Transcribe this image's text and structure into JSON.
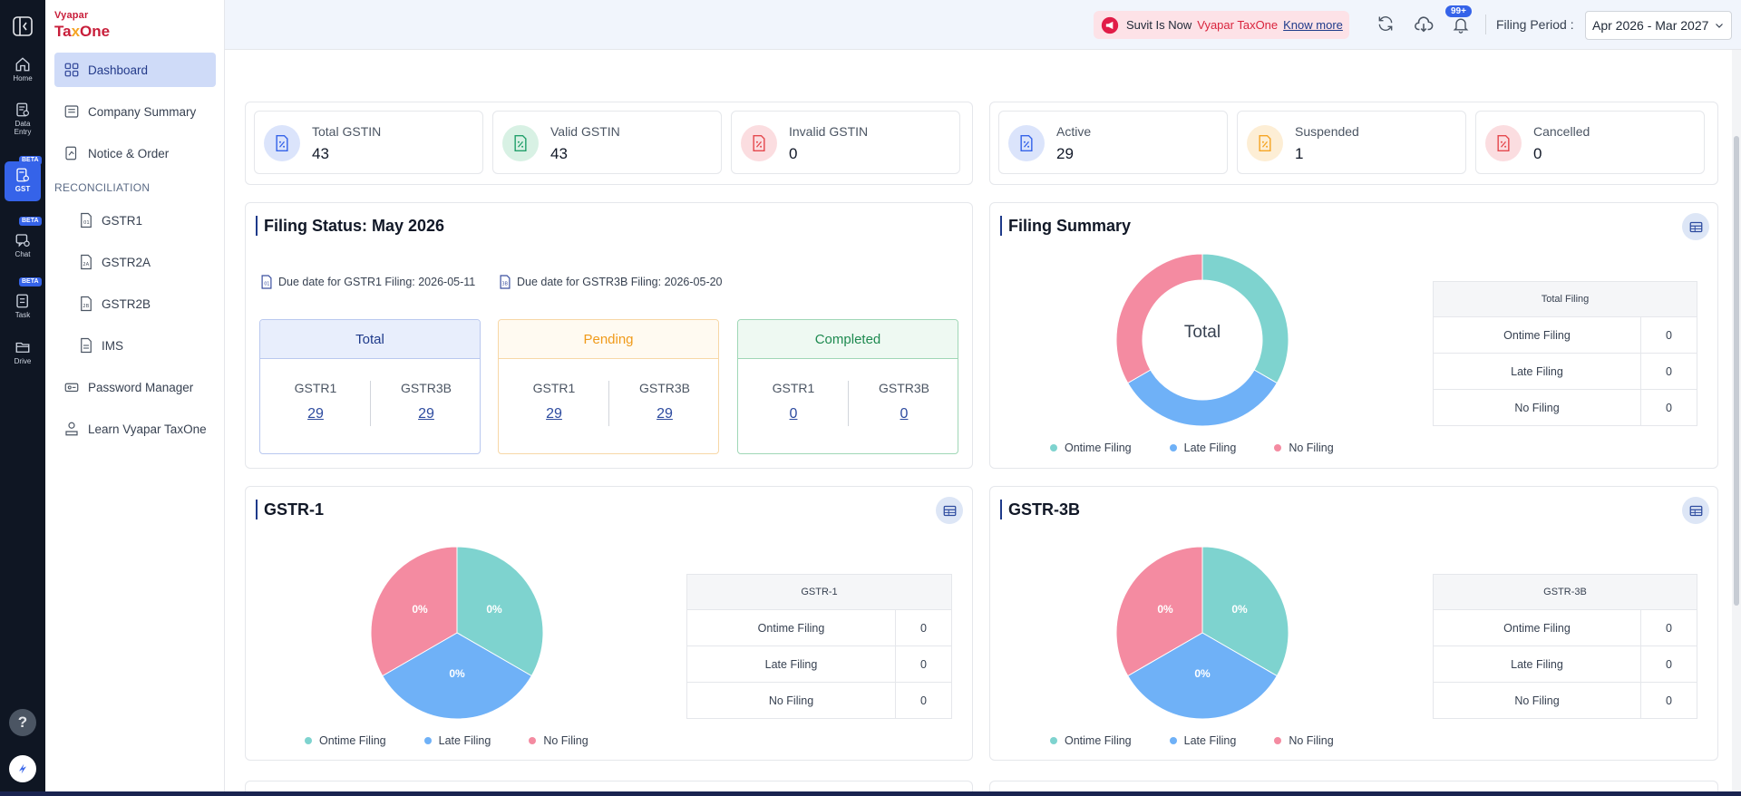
{
  "rail": {
    "items": [
      {
        "label": "Home",
        "icon": "home-icon"
      },
      {
        "label1": "Data",
        "label2": "Entry",
        "icon": "data-entry-icon"
      },
      {
        "label": "GST",
        "icon": "gst-icon",
        "beta": "BETA"
      },
      {
        "label": "Chat",
        "icon": "chat-icon",
        "beta": "BETA"
      },
      {
        "label": "Task",
        "icon": "task-icon",
        "beta": "BETA"
      },
      {
        "label": "Drive",
        "icon": "drive-icon"
      }
    ],
    "help": "?"
  },
  "logo": {
    "top": "Vyapar",
    "main_a": "Ta",
    "main_x": "x",
    "main_b": "One"
  },
  "sidebar": {
    "items": [
      {
        "label": "Dashboard",
        "icon": "dashboard-icon"
      },
      {
        "label": "Company Summary",
        "icon": "company-summary-icon"
      },
      {
        "label": "Notice & Order",
        "icon": "notice-order-icon"
      }
    ],
    "section": "RECONCILIATION",
    "recon": [
      {
        "label": "GSTR1"
      },
      {
        "label": "GSTR2A"
      },
      {
        "label": "GSTR2B"
      },
      {
        "label": "IMS"
      }
    ],
    "bottom": [
      {
        "label": "Password Manager",
        "icon": "password-manager-icon"
      },
      {
        "label": "Learn Vyapar TaxOne",
        "icon": "learn-icon"
      }
    ]
  },
  "header": {
    "banner_text": "Suvit Is Now",
    "banner_brand": "Vyapar TaxOne",
    "banner_link": "Know more",
    "notif_badge": "99+",
    "filing_period_label": "Filing Period :",
    "filing_period_value": "Apr 2026 - Mar 2027"
  },
  "stats": [
    {
      "label": "Total GSTIN",
      "value": "43",
      "color": "#3563e9"
    },
    {
      "label": "Valid GSTIN",
      "value": "43",
      "color": "#22a06b"
    },
    {
      "label": "Invalid GSTIN",
      "value": "0",
      "color": "#e5484d"
    },
    {
      "label": "Active",
      "value": "29",
      "color": "#3563e9"
    },
    {
      "label": "Suspended",
      "value": "1",
      "color": "#f5a524"
    },
    {
      "label": "Cancelled",
      "value": "0",
      "color": "#e5484d"
    }
  ],
  "filing_status": {
    "title": "Filing Status: May 2026",
    "due1": "Due date for GSTR1 Filing: 2026-05-11",
    "due2": "Due date for GSTR3B Filing: 2026-05-20",
    "boxes": [
      {
        "title": "Total",
        "c1": "GSTR1",
        "v1": "29",
        "c2": "GSTR3B",
        "v2": "29"
      },
      {
        "title": "Pending",
        "c1": "GSTR1",
        "v1": "29",
        "c2": "GSTR3B",
        "v2": "29"
      },
      {
        "title": "Completed",
        "c1": "GSTR1",
        "v1": "0",
        "c2": "GSTR3B",
        "v2": "0"
      }
    ]
  },
  "filing_summary": {
    "title": "Filing Summary",
    "donut_label": "Total",
    "table_header": "Total Filing",
    "rows": [
      {
        "label": "Ontime Filing",
        "value": "0"
      },
      {
        "label": "Late Filing",
        "value": "0"
      },
      {
        "label": "No Filing",
        "value": "0"
      }
    ]
  },
  "gstr1": {
    "title": "GSTR-1",
    "table_header": "GSTR-1",
    "slice_labels": [
      "0%",
      "0%",
      "0%"
    ],
    "rows": [
      {
        "label": "Ontime Filing",
        "value": "0"
      },
      {
        "label": "Late Filing",
        "value": "0"
      },
      {
        "label": "No Filing",
        "value": "0"
      }
    ]
  },
  "gstr3b": {
    "title": "GSTR-3B",
    "table_header": "GSTR-3B",
    "slice_labels": [
      "0%",
      "0%",
      "0%"
    ],
    "rows": [
      {
        "label": "Ontime Filing",
        "value": "0"
      },
      {
        "label": "Late Filing",
        "value": "0"
      },
      {
        "label": "No Filing",
        "value": "0"
      }
    ]
  },
  "legend": [
    "Ontime Filing",
    "Late Filing",
    "No Filing"
  ],
  "colors": {
    "ontime": "#7ed3cf",
    "late": "#6fb1f7",
    "nofiling": "#f48ba1",
    "accent": "#3563e9",
    "brand": "#c81e3a"
  }
}
